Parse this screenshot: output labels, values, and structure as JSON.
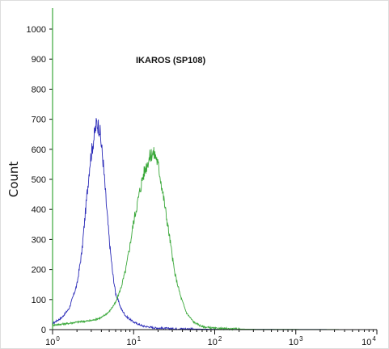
{
  "chart_data": {
    "type": "line",
    "title": "",
    "ylabel": "Count",
    "xlabel": "",
    "x_scale": "log",
    "xlim": [
      1,
      10000
    ],
    "ylim": [
      0,
      1000
    ],
    "y_ticks": [
      0,
      100,
      200,
      300,
      400,
      500,
      600,
      700,
      800,
      900,
      1000
    ],
    "x_ticks": [
      {
        "base": "10",
        "exp": "0",
        "value": 1
      },
      {
        "base": "10",
        "exp": "1",
        "value": 10
      },
      {
        "base": "10",
        "exp": "2",
        "value": 100
      },
      {
        "base": "10",
        "exp": "3",
        "value": 1000
      },
      {
        "base": "10",
        "exp": "4",
        "value": 10000
      }
    ],
    "annotation": "IKAROS (SP108)",
    "grid": false,
    "series": [
      {
        "color": "#2b2bb8",
        "points": [
          [
            1.0,
            20
          ],
          [
            1.3,
            40
          ],
          [
            1.6,
            70
          ],
          [
            2.0,
            150
          ],
          [
            2.3,
            260
          ],
          [
            2.6,
            420
          ],
          [
            2.9,
            560
          ],
          [
            3.2,
            630
          ],
          [
            3.5,
            690
          ],
          [
            3.8,
            670
          ],
          [
            4.2,
            560
          ],
          [
            4.6,
            420
          ],
          [
            5.0,
            300
          ],
          [
            5.5,
            190
          ],
          [
            6.0,
            120
          ],
          [
            7.0,
            70
          ],
          [
            8.0,
            45
          ],
          [
            10.0,
            25
          ],
          [
            13.0,
            12
          ],
          [
            18.0,
            6
          ],
          [
            30.0,
            3
          ],
          [
            100.0,
            1
          ],
          [
            10000.0,
            0
          ]
        ]
      },
      {
        "color": "#3aa83a",
        "points": [
          [
            1.0,
            15
          ],
          [
            1.5,
            20
          ],
          [
            2.0,
            25
          ],
          [
            3.0,
            30
          ],
          [
            4.0,
            40
          ],
          [
            5.0,
            60
          ],
          [
            6.0,
            90
          ],
          [
            7.0,
            140
          ],
          [
            8.0,
            200
          ],
          [
            9.0,
            280
          ],
          [
            10.0,
            360
          ],
          [
            11.5,
            440
          ],
          [
            13.0,
            510
          ],
          [
            15.0,
            560
          ],
          [
            17.0,
            590
          ],
          [
            19.0,
            575
          ],
          [
            21.0,
            520
          ],
          [
            24.0,
            420
          ],
          [
            28.0,
            300
          ],
          [
            32.0,
            190
          ],
          [
            38.0,
            110
          ],
          [
            45.0,
            55
          ],
          [
            55.0,
            25
          ],
          [
            70.0,
            10
          ],
          [
            100.0,
            4
          ],
          [
            300.0,
            1
          ],
          [
            10000.0,
            0
          ]
        ]
      }
    ]
  },
  "colors": {
    "axis": "#111111",
    "yaxis_line": "#3aa83a",
    "frame": "#cccccc"
  }
}
